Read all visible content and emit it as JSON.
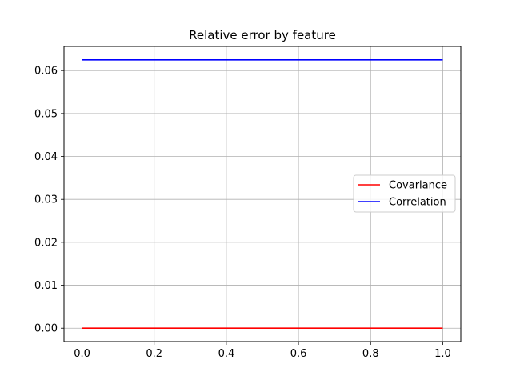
{
  "chart_data": {
    "type": "line",
    "title": "Relative error by feature",
    "xlabel": "",
    "ylabel": "",
    "xlim": [
      -0.05,
      1.05
    ],
    "ylim": [
      -0.003125,
      0.065625
    ],
    "x_ticks": [
      0.0,
      0.2,
      0.4,
      0.6,
      0.8,
      1.0
    ],
    "x_tick_labels": [
      "0.0",
      "0.2",
      "0.4",
      "0.6",
      "0.8",
      "1.0"
    ],
    "y_ticks": [
      0.0,
      0.01,
      0.02,
      0.03,
      0.04,
      0.05,
      0.06
    ],
    "y_tick_labels": [
      "0.00",
      "0.01",
      "0.02",
      "0.03",
      "0.04",
      "0.05",
      "0.06"
    ],
    "grid": true,
    "legend_position": "center-right",
    "series": [
      {
        "name": "Covariance",
        "color": "#ff0000",
        "x": [
          0.0,
          1.0
        ],
        "y": [
          0.0,
          0.0
        ]
      },
      {
        "name": "Correlation",
        "color": "#0000ff",
        "x": [
          0.0,
          1.0
        ],
        "y": [
          0.0625,
          0.0625
        ]
      }
    ]
  }
}
